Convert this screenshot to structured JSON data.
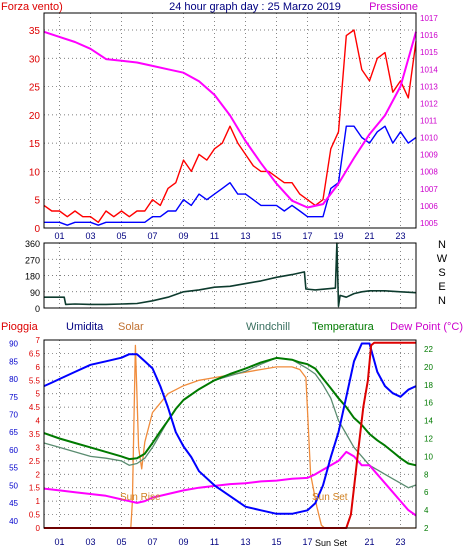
{
  "chart_data": [
    {
      "type": "line",
      "title": "24 hour graph day : 25 Marzo 2019",
      "left_axis_label": "Forza vento)",
      "right_axis_label": "Pressione",
      "x_ticks": [
        "01",
        "03",
        "05",
        "07",
        "09",
        "11",
        "13",
        "15",
        "17",
        "19",
        "21",
        "23"
      ],
      "left_ticks": [
        "0",
        "5",
        "10",
        "15",
        "20",
        "25",
        "30",
        "35"
      ],
      "right_ticks": [
        "1005",
        "1006",
        "1007",
        "1008",
        "1009",
        "1010",
        "1011",
        "1012",
        "1013",
        "1014",
        "1015",
        "1016",
        "1017"
      ],
      "ylim_left": [
        0,
        38
      ],
      "ylim_right": [
        1004.7,
        1017.3
      ],
      "x_range": [
        0,
        24
      ],
      "series": [
        {
          "color": "#ff0000",
          "axis": "left",
          "x": [
            0,
            0.5,
            1,
            1.5,
            2,
            2.5,
            3,
            3.5,
            4,
            4.5,
            5,
            5.5,
            6,
            6.5,
            7,
            7.5,
            8,
            8.5,
            9,
            9.5,
            10,
            10.5,
            11,
            11.5,
            12,
            12.5,
            13,
            13.5,
            14,
            14.5,
            15,
            15.5,
            16,
            16.5,
            17,
            17.5,
            18,
            18.5,
            19,
            19.5,
            20,
            20.5,
            21,
            21.5,
            22,
            22.5,
            23,
            23.5,
            24
          ],
          "values": [
            4,
            3,
            3,
            2,
            3,
            2,
            2,
            1,
            3,
            2,
            3,
            2,
            3,
            3,
            5,
            4,
            7,
            8,
            12,
            10,
            13,
            12,
            14,
            15,
            18,
            15,
            13,
            11,
            10,
            10,
            9,
            8,
            8,
            6,
            5,
            4,
            5,
            14,
            17,
            34,
            35,
            28,
            26,
            30,
            31,
            24,
            26,
            23,
            33
          ]
        },
        {
          "color": "#0000ff",
          "axis": "left",
          "x": [
            0,
            0.5,
            1,
            1.5,
            2,
            2.5,
            3,
            3.5,
            4,
            4.5,
            5,
            5.5,
            6,
            6.5,
            7,
            7.5,
            8,
            8.5,
            9,
            9.5,
            10,
            10.5,
            11,
            11.5,
            12,
            12.5,
            13,
            13.5,
            14,
            14.5,
            15,
            15.5,
            16,
            16.5,
            17,
            17.5,
            18,
            18.5,
            19,
            19.5,
            20,
            20.5,
            21,
            21.5,
            22,
            22.5,
            23,
            23.5,
            24
          ],
          "values": [
            1,
            1,
            1,
            0.5,
            1,
            1,
            1,
            0.5,
            1,
            1,
            1,
            1,
            1,
            1,
            2,
            2,
            3,
            3,
            5,
            4,
            6,
            5,
            6,
            7,
            8,
            6,
            6,
            5,
            4,
            4,
            4,
            3,
            4,
            3,
            2,
            2,
            2,
            7,
            8,
            18,
            18,
            16,
            15,
            17,
            18,
            15,
            17,
            15,
            16
          ]
        },
        {
          "color": "#ff00ff",
          "axis": "right",
          "x": [
            0,
            1,
            2,
            3,
            4,
            5,
            6,
            7,
            8,
            9,
            10,
            11,
            12,
            13,
            14,
            15,
            16,
            17,
            18,
            19,
            20,
            21,
            22,
            23,
            24
          ],
          "values": [
            1016.2,
            1015.9,
            1015.6,
            1015.2,
            1014.6,
            1014.5,
            1014.4,
            1014.2,
            1014.0,
            1013.8,
            1013.3,
            1012.5,
            1011.3,
            1009.8,
            1008.5,
            1007.3,
            1006.3,
            1005.9,
            1006.1,
            1007.3,
            1008.8,
            1010.2,
            1011.3,
            1013.0,
            1016.2
          ]
        }
      ]
    },
    {
      "type": "line",
      "direction_labels": [
        "N",
        "W",
        "S",
        "E",
        "N"
      ],
      "ticks": [
        "0",
        "90",
        "180",
        "270",
        "360"
      ],
      "ylim": [
        0,
        360
      ],
      "x_range": [
        0,
        24
      ],
      "series": [
        {
          "color": "#0d3b2e",
          "x": [
            0,
            1.3,
            1.4,
            2,
            3,
            4,
            5,
            6,
            7,
            8,
            9,
            10,
            11,
            12,
            13,
            14,
            15,
            16,
            16.8,
            16.9,
            17.5,
            18.8,
            18.9,
            19.0,
            19.1,
            19.5,
            20,
            20.5,
            21,
            22,
            23,
            24
          ],
          "values": [
            60,
            60,
            20,
            22,
            20,
            20,
            22,
            25,
            40,
            60,
            90,
            100,
            115,
            120,
            135,
            150,
            170,
            185,
            200,
            105,
            100,
            110,
            360,
            10,
            70,
            60,
            80,
            90,
            95,
            95,
            90,
            85
          ]
        }
      ]
    },
    {
      "type": "line",
      "labels": {
        "pioggia": "Pioggia",
        "umidita": "Umidita",
        "solar": "Solar",
        "windchill": "Windchill",
        "temperatura": "Temperatura",
        "dewpoint": "Dew Point (°C)",
        "sunrise": "Sun Rise",
        "sunset": "Sun Set",
        "sunset_axis": "Sun Set"
      },
      "rain_ticks": [
        "0",
        "0.5",
        "1",
        "1.5",
        "2",
        "2.5",
        "3",
        "3.5",
        "4",
        "4.5",
        "5",
        "5.5",
        "6",
        "6.5",
        "7"
      ],
      "humidity_ticks": [
        "40",
        "45",
        "50",
        "55",
        "60",
        "65",
        "70",
        "75",
        "80",
        "85",
        "90"
      ],
      "temp_ticks": [
        "2",
        "4",
        "6",
        "8",
        "10",
        "12",
        "14",
        "16",
        "18",
        "20",
        "22"
      ],
      "x_ticks": [
        "01",
        "03",
        "05",
        "07",
        "09",
        "11",
        "13",
        "15",
        "17",
        "19",
        "21",
        "23"
      ],
      "ylim_rain": [
        0,
        7
      ],
      "ylim_humidity": [
        38,
        91
      ],
      "ylim_temp": [
        2,
        23
      ],
      "x_range": [
        0,
        24
      ],
      "series": [
        {
          "name": "Pioggia",
          "color": "#dd0000",
          "axis": "rain",
          "x": [
            0,
            19.5,
            19.8,
            20,
            20.3,
            20.6,
            20.9,
            21.1,
            21.3,
            24
          ],
          "values": [
            0,
            0,
            0.5,
            1.5,
            3,
            4.5,
            5.5,
            6.8,
            6.9,
            6.9
          ]
        },
        {
          "name": "Umidita",
          "color": "#0000ff",
          "axis": "humidity",
          "x": [
            0,
            0.5,
            1,
            2,
            3,
            4,
            5,
            5.5,
            6,
            6.5,
            7,
            7.5,
            8,
            8.5,
            9,
            9.5,
            10,
            11,
            12,
            13,
            14,
            15,
            16,
            17,
            17.5,
            18,
            18.5,
            19,
            19.5,
            20,
            20.5,
            21,
            21.5,
            22,
            22.5,
            23,
            23.5,
            24
          ],
          "values": [
            78,
            79,
            80,
            82,
            84,
            85,
            86,
            87,
            87,
            85,
            83,
            78,
            72,
            65,
            61,
            58,
            54,
            50,
            47,
            44,
            43,
            42,
            42,
            43,
            45,
            50,
            58,
            65,
            75,
            85,
            90,
            90,
            82,
            78,
            76,
            75,
            77,
            78
          ]
        },
        {
          "name": "Solar",
          "color": "#f08c3c",
          "axis": "rain",
          "x": [
            0,
            5.6,
            5.7,
            5.9,
            6.1,
            6.3,
            6.5,
            7,
            8,
            9,
            10,
            11,
            12,
            13,
            14,
            15,
            16,
            16.5,
            16.9,
            17.2,
            17.6,
            17.9,
            18.1,
            24
          ],
          "values": [
            0,
            0,
            1,
            6.8,
            3,
            2.2,
            3.2,
            4.3,
            5,
            5.3,
            5.5,
            5.6,
            5.7,
            5.8,
            5.9,
            6,
            6,
            5.9,
            5.6,
            2,
            0.8,
            0.1,
            0,
            0
          ]
        },
        {
          "name": "Windchill",
          "color": "#5a8c70",
          "axis": "temp",
          "x": [
            0,
            1,
            2,
            3,
            4,
            5,
            5.5,
            6,
            6.5,
            7,
            7.5,
            8,
            8.5,
            9,
            10,
            11,
            12,
            13,
            14,
            15,
            16,
            16.5,
            17,
            17.5,
            18,
            18.5,
            19,
            19.5,
            20,
            20.5,
            21,
            21.5,
            22,
            22.5,
            23,
            23.5,
            24
          ],
          "values": [
            11.5,
            11,
            10.5,
            10,
            9.8,
            9.5,
            9,
            9.2,
            9.8,
            11,
            12.5,
            14,
            15.3,
            16.3,
            17.5,
            18.5,
            19,
            19.5,
            20.3,
            21,
            20.8,
            20.3,
            19.8,
            19.2,
            18,
            16.5,
            14,
            12.5,
            11,
            10,
            9,
            8.5,
            8,
            7.5,
            7,
            6.5,
            6.8
          ]
        },
        {
          "name": "Temperatura",
          "color": "#007a00",
          "axis": "temp",
          "x": [
            0,
            1,
            2,
            3,
            4,
            5,
            5.5,
            6,
            6.5,
            7,
            7.5,
            8,
            8.5,
            9,
            10,
            11,
            12,
            13,
            14,
            15,
            16,
            16.5,
            17,
            17.5,
            18,
            18.5,
            19,
            19.5,
            20,
            20.5,
            21,
            21.5,
            22,
            22.5,
            23,
            23.5,
            24
          ],
          "values": [
            12.6,
            12,
            11.5,
            11,
            10.5,
            10,
            9.7,
            9.8,
            10.3,
            11.5,
            12.8,
            14,
            15.3,
            16.3,
            17.5,
            18.5,
            19.2,
            19.8,
            20.5,
            21,
            20.8,
            20.5,
            20.3,
            19.8,
            18.7,
            17.6,
            16.5,
            15.5,
            14.3,
            13.5,
            12.5,
            11.8,
            11.2,
            10.5,
            9.8,
            9.2,
            9
          ]
        },
        {
          "name": "Dew Point",
          "color": "#ff00ff",
          "axis": "temp",
          "x": [
            0,
            1,
            2,
            3,
            4,
            5,
            6,
            6.5,
            7,
            8,
            9,
            10,
            11,
            12,
            13,
            14,
            15,
            16,
            17,
            17.5,
            18,
            18.5,
            19,
            19.5,
            20,
            20.5,
            21,
            21.5,
            22,
            22.5,
            23,
            23.5,
            24
          ],
          "values": [
            6.4,
            6.2,
            6,
            5.8,
            5.6,
            5.2,
            4.8,
            5,
            5.4,
            5.8,
            6.2,
            6.5,
            6.7,
            6.9,
            7,
            7.2,
            7.3,
            7.5,
            7.6,
            8,
            8.5,
            9,
            9.5,
            10.5,
            10,
            9,
            9,
            8,
            7,
            6,
            5,
            4,
            3.4
          ]
        }
      ]
    }
  ]
}
